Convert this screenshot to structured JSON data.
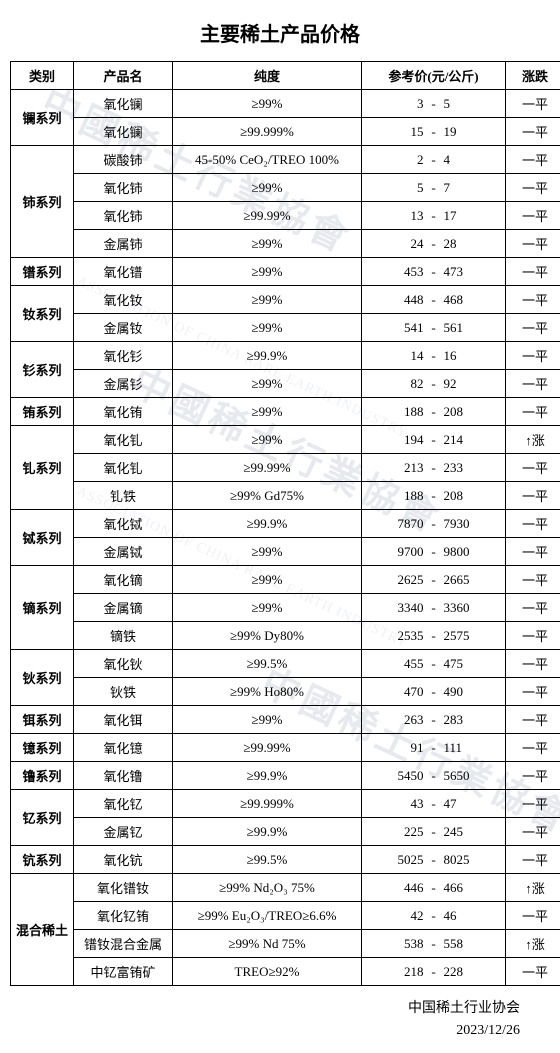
{
  "title": "主要稀土产品价格",
  "columns": [
    "类别",
    "产品名",
    "纯度",
    "参考价(元/公斤)",
    "涨跌"
  ],
  "trend_flat": "一平",
  "trend_up": "↑涨",
  "footer_org": "中国稀土行业协会",
  "footer_date": "2023/12/26",
  "style": {
    "border_color": "#000000",
    "background": "#ffffff",
    "font_size_body": 13,
    "font_size_title": 20,
    "watermark_color": "#e6e9ee"
  },
  "groups": [
    {
      "cat": "镧系列",
      "rows": [
        {
          "prod": "氧化镧",
          "purity": "≥99%",
          "lo": "3",
          "hi": "5",
          "trend": "flat"
        },
        {
          "prod": "氧化镧",
          "purity": "≥99.999%",
          "lo": "15",
          "hi": "19",
          "trend": "flat"
        }
      ]
    },
    {
      "cat": "铈系列",
      "rows": [
        {
          "prod": "碳酸铈",
          "purity": "45-50% CeO₂/TREO 100%",
          "lo": "2",
          "hi": "4",
          "trend": "flat"
        },
        {
          "prod": "氧化铈",
          "purity": "≥99%",
          "lo": "5",
          "hi": "7",
          "trend": "flat"
        },
        {
          "prod": "氧化铈",
          "purity": "≥99.99%",
          "lo": "13",
          "hi": "17",
          "trend": "flat"
        },
        {
          "prod": "金属铈",
          "purity": "≥99%",
          "lo": "24",
          "hi": "28",
          "trend": "flat"
        }
      ]
    },
    {
      "cat": "镨系列",
      "rows": [
        {
          "prod": "氧化镨",
          "purity": "≥99%",
          "lo": "453",
          "hi": "473",
          "trend": "flat"
        }
      ]
    },
    {
      "cat": "钕系列",
      "rows": [
        {
          "prod": "氧化钕",
          "purity": "≥99%",
          "lo": "448",
          "hi": "468",
          "trend": "flat"
        },
        {
          "prod": "金属钕",
          "purity": "≥99%",
          "lo": "541",
          "hi": "561",
          "trend": "flat"
        }
      ]
    },
    {
      "cat": "钐系列",
      "rows": [
        {
          "prod": "氧化钐",
          "purity": "≥99.9%",
          "lo": "14",
          "hi": "16",
          "trend": "flat"
        },
        {
          "prod": "金属钐",
          "purity": "≥99%",
          "lo": "82",
          "hi": "92",
          "trend": "flat"
        }
      ]
    },
    {
      "cat": "铕系列",
      "rows": [
        {
          "prod": "氧化铕",
          "purity": "≥99%",
          "lo": "188",
          "hi": "208",
          "trend": "flat"
        }
      ]
    },
    {
      "cat": "钆系列",
      "rows": [
        {
          "prod": "氧化钆",
          "purity": "≥99%",
          "lo": "194",
          "hi": "214",
          "trend": "up"
        },
        {
          "prod": "氧化钆",
          "purity": "≥99.99%",
          "lo": "213",
          "hi": "233",
          "trend": "flat"
        },
        {
          "prod": "钆铁",
          "purity": "≥99% Gd75%",
          "lo": "188",
          "hi": "208",
          "trend": "flat"
        }
      ]
    },
    {
      "cat": "铽系列",
      "rows": [
        {
          "prod": "氧化铽",
          "purity": "≥99.9%",
          "lo": "7870",
          "hi": "7930",
          "trend": "flat"
        },
        {
          "prod": "金属铽",
          "purity": "≥99%",
          "lo": "9700",
          "hi": "9800",
          "trend": "flat"
        }
      ]
    },
    {
      "cat": "镝系列",
      "rows": [
        {
          "prod": "氧化镝",
          "purity": "≥99%",
          "lo": "2625",
          "hi": "2665",
          "trend": "flat"
        },
        {
          "prod": "金属镝",
          "purity": "≥99%",
          "lo": "3340",
          "hi": "3360",
          "trend": "flat"
        },
        {
          "prod": "镝铁",
          "purity": "≥99% Dy80%",
          "lo": "2535",
          "hi": "2575",
          "trend": "flat"
        }
      ]
    },
    {
      "cat": "钬系列",
      "rows": [
        {
          "prod": "氧化钬",
          "purity": "≥99.5%",
          "lo": "455",
          "hi": "475",
          "trend": "flat"
        },
        {
          "prod": "钬铁",
          "purity": "≥99% Ho80%",
          "lo": "470",
          "hi": "490",
          "trend": "flat"
        }
      ]
    },
    {
      "cat": "铒系列",
      "rows": [
        {
          "prod": "氧化铒",
          "purity": "≥99%",
          "lo": "263",
          "hi": "283",
          "trend": "flat"
        }
      ]
    },
    {
      "cat": "镱系列",
      "rows": [
        {
          "prod": "氧化镱",
          "purity": "≥99.99%",
          "lo": "91",
          "hi": "111",
          "trend": "flat"
        }
      ]
    },
    {
      "cat": "镥系列",
      "rows": [
        {
          "prod": "氧化镥",
          "purity": "≥99.9%",
          "lo": "5450",
          "hi": "5650",
          "trend": "flat"
        }
      ]
    },
    {
      "cat": "钇系列",
      "rows": [
        {
          "prod": "氧化钇",
          "purity": "≥99.999%",
          "lo": "43",
          "hi": "47",
          "trend": "flat"
        },
        {
          "prod": "金属钇",
          "purity": "≥99.9%",
          "lo": "225",
          "hi": "245",
          "trend": "flat"
        }
      ]
    },
    {
      "cat": "钪系列",
      "rows": [
        {
          "prod": "氧化钪",
          "purity": "≥99.5%",
          "lo": "5025",
          "hi": "8025",
          "trend": "flat"
        }
      ]
    },
    {
      "cat": "混合稀土",
      "rows": [
        {
          "prod": "氧化镨钕",
          "purity": "≥99%  Nd₂O₃  75%",
          "lo": "446",
          "hi": "466",
          "trend": "up"
        },
        {
          "prod": "氧化钇铕",
          "purity": "≥99% Eu₂O₃/TREO≥6.6%",
          "lo": "42",
          "hi": "46",
          "trend": "flat"
        },
        {
          "prod": "镨钕混合金属",
          "purity": "≥99% Nd 75%",
          "lo": "538",
          "hi": "558",
          "trend": "up"
        },
        {
          "prod": "中钇富铕矿",
          "purity": "TREO≥92%",
          "lo": "218",
          "hi": "228",
          "trend": "flat"
        }
      ]
    }
  ]
}
